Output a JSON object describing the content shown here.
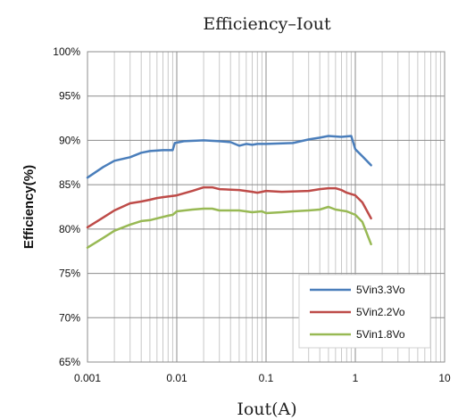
{
  "chart_data": {
    "type": "line",
    "title": "Efficiency–Iout",
    "xlabel": "Iout(A)",
    "ylabel": "Efficiency(%)",
    "x_scale": "log",
    "xlim": [
      0.001,
      10
    ],
    "ylim": [
      65,
      100
    ],
    "x_ticks": [
      0.001,
      0.01,
      0.1,
      1,
      10
    ],
    "x_tick_labels": [
      "0.001",
      "0.01",
      "0.1",
      "1",
      "10"
    ],
    "y_ticks": [
      65,
      70,
      75,
      80,
      85,
      90,
      95,
      100
    ],
    "y_tick_labels": [
      "65%",
      "70%",
      "75%",
      "80%",
      "85%",
      "90%",
      "95%",
      "100%"
    ],
    "grid": true,
    "legend_position": "bottom-right",
    "series": [
      {
        "name": "5Vin3.3Vo",
        "color": "#4a7ebb",
        "points": [
          [
            0.001,
            85.8
          ],
          [
            0.0015,
            87.0
          ],
          [
            0.002,
            87.7
          ],
          [
            0.003,
            88.1
          ],
          [
            0.004,
            88.6
          ],
          [
            0.005,
            88.8
          ],
          [
            0.007,
            88.9
          ],
          [
            0.009,
            88.9
          ],
          [
            0.0095,
            89.7
          ],
          [
            0.012,
            89.9
          ],
          [
            0.02,
            90.0
          ],
          [
            0.03,
            89.9
          ],
          [
            0.04,
            89.8
          ],
          [
            0.05,
            89.4
          ],
          [
            0.06,
            89.6
          ],
          [
            0.07,
            89.5
          ],
          [
            0.08,
            89.6
          ],
          [
            0.1,
            89.6
          ],
          [
            0.2,
            89.7
          ],
          [
            0.3,
            90.1
          ],
          [
            0.4,
            90.3
          ],
          [
            0.5,
            90.5
          ],
          [
            0.7,
            90.4
          ],
          [
            0.9,
            90.5
          ],
          [
            1.0,
            89.0
          ],
          [
            1.2,
            88.2
          ],
          [
            1.5,
            87.2
          ]
        ]
      },
      {
        "name": "5Vin2.2Vo",
        "color": "#be4b48",
        "points": [
          [
            0.001,
            80.2
          ],
          [
            0.0015,
            81.3
          ],
          [
            0.002,
            82.1
          ],
          [
            0.003,
            82.9
          ],
          [
            0.004,
            83.1
          ],
          [
            0.005,
            83.3
          ],
          [
            0.006,
            83.5
          ],
          [
            0.007,
            83.6
          ],
          [
            0.01,
            83.8
          ],
          [
            0.015,
            84.3
          ],
          [
            0.02,
            84.7
          ],
          [
            0.025,
            84.7
          ],
          [
            0.03,
            84.5
          ],
          [
            0.05,
            84.4
          ],
          [
            0.07,
            84.2
          ],
          [
            0.08,
            84.1
          ],
          [
            0.09,
            84.2
          ],
          [
            0.1,
            84.3
          ],
          [
            0.15,
            84.2
          ],
          [
            0.3,
            84.3
          ],
          [
            0.4,
            84.5
          ],
          [
            0.5,
            84.6
          ],
          [
            0.6,
            84.6
          ],
          [
            0.7,
            84.4
          ],
          [
            0.8,
            84.1
          ],
          [
            1.0,
            83.8
          ],
          [
            1.2,
            83.0
          ],
          [
            1.5,
            81.2
          ]
        ]
      },
      {
        "name": "5Vin1.8Vo",
        "color": "#98b954",
        "points": [
          [
            0.001,
            77.9
          ],
          [
            0.0015,
            79.0
          ],
          [
            0.002,
            79.8
          ],
          [
            0.003,
            80.5
          ],
          [
            0.004,
            80.9
          ],
          [
            0.005,
            81.0
          ],
          [
            0.006,
            81.2
          ],
          [
            0.008,
            81.5
          ],
          [
            0.009,
            81.6
          ],
          [
            0.01,
            82.0
          ],
          [
            0.015,
            82.2
          ],
          [
            0.02,
            82.3
          ],
          [
            0.025,
            82.3
          ],
          [
            0.03,
            82.1
          ],
          [
            0.05,
            82.1
          ],
          [
            0.07,
            81.9
          ],
          [
            0.09,
            82.0
          ],
          [
            0.1,
            81.8
          ],
          [
            0.15,
            81.9
          ],
          [
            0.2,
            82.0
          ],
          [
            0.3,
            82.1
          ],
          [
            0.4,
            82.2
          ],
          [
            0.5,
            82.5
          ],
          [
            0.6,
            82.2
          ],
          [
            0.8,
            82.0
          ],
          [
            1.0,
            81.6
          ],
          [
            1.2,
            80.8
          ],
          [
            1.5,
            78.3
          ]
        ]
      }
    ]
  }
}
